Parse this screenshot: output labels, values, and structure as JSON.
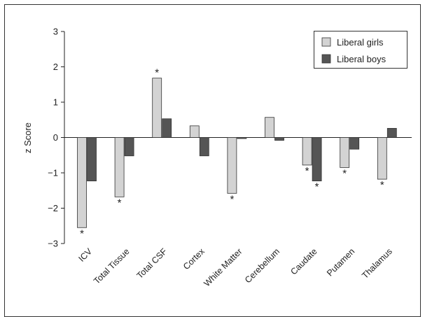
{
  "chart_data": {
    "type": "bar",
    "ylabel": "z Score",
    "ylim": [
      -3,
      3
    ],
    "yticks": [
      3,
      2,
      1,
      0,
      -1,
      -2,
      -3
    ],
    "legend_position": "top-right",
    "categories": [
      "ICV",
      "Total Tissue",
      "Total CSF",
      "Cortex",
      "White Matter",
      "Cerebellum",
      "Caudate",
      "Putamen",
      "Thalamus"
    ],
    "series": [
      {
        "name": "Liberal girls",
        "color": "#d3d3d3",
        "values": [
          -2.55,
          -1.68,
          1.68,
          0.33,
          -1.58,
          0.57,
          -0.78,
          -0.85,
          -1.18
        ],
        "significant": [
          true,
          true,
          true,
          false,
          true,
          false,
          true,
          true,
          true
        ]
      },
      {
        "name": "Liberal boys",
        "color": "#555555",
        "values": [
          -1.23,
          -0.52,
          0.53,
          -0.52,
          -0.03,
          -0.08,
          -1.23,
          -0.33,
          0.26
        ],
        "significant": [
          false,
          false,
          false,
          false,
          false,
          false,
          true,
          false,
          false
        ]
      }
    ],
    "annotation_symbol": "*"
  }
}
